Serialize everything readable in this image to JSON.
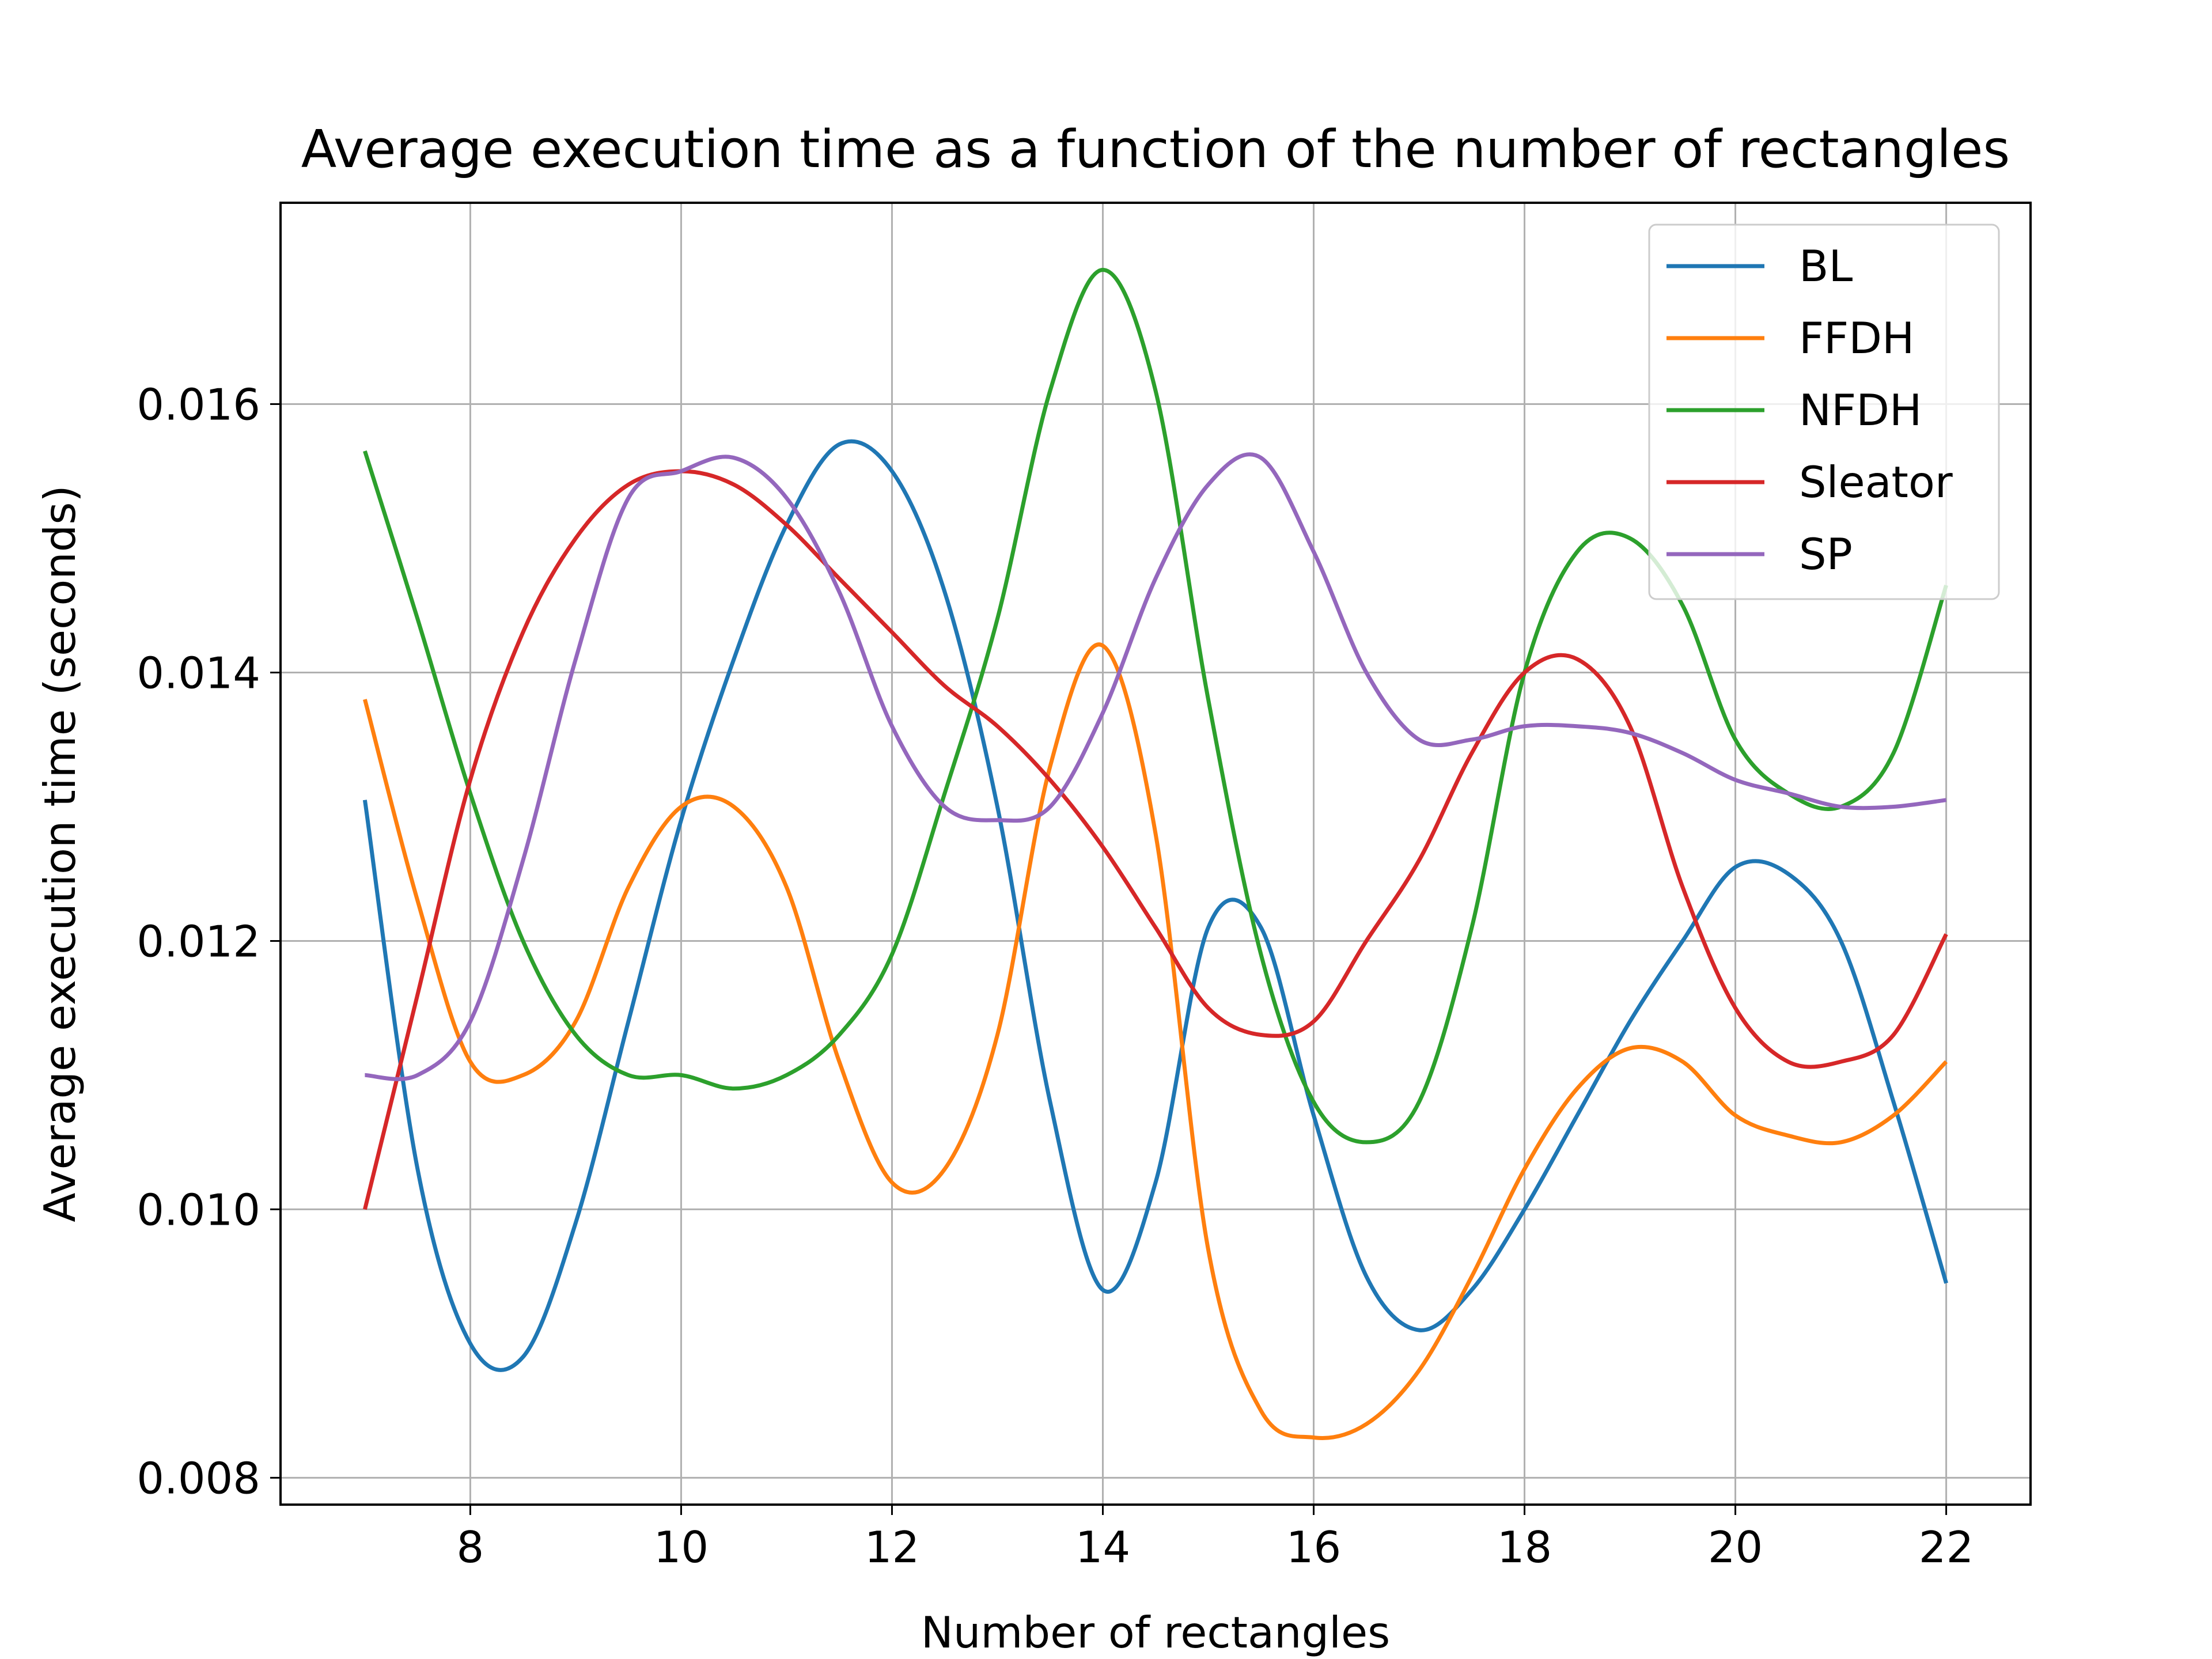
{
  "chart_data": {
    "type": "line",
    "title": "Average execution time as a function of the number of rectangles",
    "xlabel": "Number of rectangles",
    "ylabel": "Average execution time (seconds)",
    "xlim": [
      6.2,
      22.8
    ],
    "ylim": [
      0.0078,
      0.0175
    ],
    "xticks": [
      8,
      10,
      12,
      14,
      16,
      18,
      20,
      22
    ],
    "yticks": [
      0.008,
      0.01,
      0.012,
      0.014,
      0.016
    ],
    "ytick_labels": [
      "0.008",
      "0.010",
      "0.012",
      "0.014",
      "0.016"
    ],
    "grid": true,
    "legend_position": "top-right",
    "x": [
      7,
      7.5,
      8,
      8.5,
      9,
      9.5,
      10,
      10.5,
      11,
      11.5,
      12,
      12.5,
      13,
      13.5,
      14,
      14.5,
      15,
      15.5,
      16,
      16.5,
      17,
      17.5,
      18,
      18.5,
      19,
      19.5,
      20,
      20.5,
      21,
      21.5,
      22
    ],
    "series": [
      {
        "name": "BL",
        "color": "#1f77b4",
        "values": [
          0.01305,
          0.0103,
          0.009,
          0.0089,
          0.0099,
          0.0114,
          0.0129,
          0.0141,
          0.0151,
          0.0157,
          0.0155,
          0.0146,
          0.013,
          0.0108,
          0.0094,
          0.0102,
          0.0121,
          0.0121,
          0.0107,
          0.0095,
          0.0091,
          0.0094,
          0.01,
          0.0107,
          0.0114,
          0.012,
          0.01255,
          0.0125,
          0.012,
          0.0108,
          0.00945
        ]
      },
      {
        "name": "FFDH",
        "color": "#ff7f0e",
        "values": [
          0.0138,
          0.0123,
          0.0111,
          0.011,
          0.0114,
          0.0124,
          0.013,
          0.013,
          0.0124,
          0.0111,
          0.0102,
          0.0103,
          0.0113,
          0.0133,
          0.0142,
          0.0128,
          0.0097,
          0.0085,
          0.0083,
          0.0084,
          0.0088,
          0.0095,
          0.0103,
          0.0109,
          0.0112,
          0.0111,
          0.0107,
          0.01055,
          0.0105,
          0.0107,
          0.0111
        ]
      },
      {
        "name": "NFDH",
        "color": "#2ca02c",
        "values": [
          0.01565,
          0.0144,
          0.0131,
          0.012,
          0.0113,
          0.011,
          0.011,
          0.0109,
          0.011,
          0.0113,
          0.0119,
          0.0131,
          0.0144,
          0.0161,
          0.017,
          0.0161,
          0.0138,
          0.0119,
          0.0108,
          0.0105,
          0.0108,
          0.0121,
          0.014,
          0.0149,
          0.015,
          0.0145,
          0.0135,
          0.0131,
          0.013,
          0.0134,
          0.01465
        ]
      },
      {
        "name": "Sleator",
        "color": "#d62728",
        "values": [
          0.01,
          0.0116,
          0.0132,
          0.0143,
          0.015,
          0.0154,
          0.0155,
          0.0154,
          0.0151,
          0.0147,
          0.0143,
          0.0139,
          0.0136,
          0.0132,
          0.0127,
          0.0121,
          0.0115,
          0.0113,
          0.0114,
          0.012,
          0.0126,
          0.0134,
          0.014,
          0.0141,
          0.0136,
          0.0124,
          0.0115,
          0.0111,
          0.0111,
          0.0113,
          0.01205
        ]
      },
      {
        "name": "SP",
        "color": "#9467bd",
        "values": [
          0.011,
          0.011,
          0.0114,
          0.0126,
          0.0141,
          0.0153,
          0.0155,
          0.0156,
          0.0153,
          0.0146,
          0.0136,
          0.013,
          0.0129,
          0.013,
          0.0137,
          0.0147,
          0.0154,
          0.0156,
          0.0149,
          0.014,
          0.0135,
          0.0135,
          0.0136,
          0.0136,
          0.01355,
          0.0134,
          0.0132,
          0.0131,
          0.013,
          0.013,
          0.01305
        ]
      }
    ]
  }
}
